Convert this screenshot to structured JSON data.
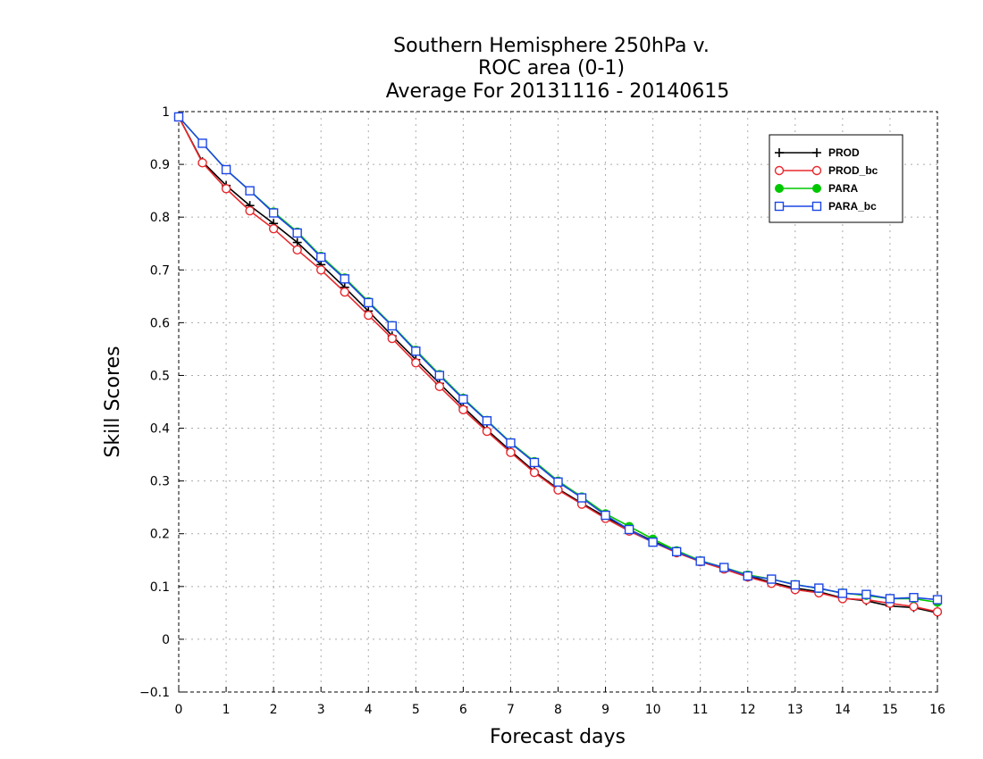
{
  "chart_data": {
    "type": "line",
    "title": [
      "Southern Hemisphere 250hPa v.",
      "ROC area (0-1)",
      "Average For 20131116 - 20140615"
    ],
    "xlabel": "Forecast days",
    "ylabel": "Skill Scores",
    "xlim": [
      0,
      16
    ],
    "ylim": [
      -0.1,
      1
    ],
    "xticks": [
      0,
      1,
      2,
      3,
      4,
      5,
      6,
      7,
      8,
      9,
      10,
      11,
      12,
      13,
      14,
      15,
      16
    ],
    "yticks": [
      -0.1,
      0,
      0.1,
      0.2,
      0.3,
      0.4,
      0.5,
      0.6,
      0.7,
      0.8,
      0.9,
      1
    ],
    "ytick_labels": [
      "−0.1",
      "0",
      "0.1",
      "0.2",
      "0.3",
      "0.4",
      "0.5",
      "0.6",
      "0.7",
      "0.8",
      "0.9",
      "1"
    ],
    "grid": true,
    "legend_position": "top-right",
    "x": [
      0,
      0.5,
      1,
      1.5,
      2,
      2.5,
      3,
      3.5,
      4,
      4.5,
      5,
      5.5,
      6,
      6.5,
      7,
      7.5,
      8,
      8.5,
      9,
      9.5,
      10,
      10.5,
      11,
      11.5,
      12,
      12.5,
      13,
      13.5,
      14,
      14.5,
      15,
      15.5,
      16
    ],
    "series": [
      {
        "name": "PROD",
        "color": "#000000",
        "marker": "plus",
        "values": [
          0.99,
          0.905,
          0.86,
          0.822,
          0.788,
          0.752,
          0.71,
          0.667,
          0.622,
          0.575,
          0.53,
          0.485,
          0.44,
          0.397,
          0.357,
          0.318,
          0.285,
          0.258,
          0.232,
          0.208,
          0.186,
          0.166,
          0.148,
          0.135,
          0.12,
          0.108,
          0.097,
          0.09,
          0.078,
          0.073,
          0.063,
          0.06,
          0.05
        ]
      },
      {
        "name": "PROD_bc",
        "color": "#e8282d",
        "marker": "circle-open",
        "values": [
          0.99,
          0.903,
          0.854,
          0.812,
          0.778,
          0.738,
          0.7,
          0.658,
          0.614,
          0.57,
          0.524,
          0.479,
          0.435,
          0.394,
          0.354,
          0.316,
          0.283,
          0.256,
          0.229,
          0.205,
          0.184,
          0.164,
          0.147,
          0.133,
          0.118,
          0.106,
          0.094,
          0.088,
          0.077,
          0.075,
          0.068,
          0.062,
          0.052
        ]
      },
      {
        "name": "PARA",
        "color": "#00c800",
        "marker": "circle-filled",
        "values": [
          0.99,
          0.94,
          0.89,
          0.85,
          0.81,
          0.772,
          0.726,
          0.685,
          0.64,
          0.595,
          0.548,
          0.502,
          0.457,
          0.415,
          0.373,
          0.337,
          0.3,
          0.27,
          0.238,
          0.214,
          0.19,
          0.168,
          0.149,
          0.136,
          0.122,
          0.114,
          0.104,
          0.096,
          0.088,
          0.083,
          0.077,
          0.077,
          0.07
        ]
      },
      {
        "name": "PARA_bc",
        "color": "#1c46e6",
        "marker": "square-open",
        "values": [
          0.99,
          0.94,
          0.89,
          0.85,
          0.808,
          0.77,
          0.724,
          0.683,
          0.638,
          0.594,
          0.546,
          0.5,
          0.455,
          0.414,
          0.372,
          0.335,
          0.298,
          0.268,
          0.235,
          0.208,
          0.184,
          0.166,
          0.148,
          0.136,
          0.12,
          0.114,
          0.103,
          0.097,
          0.087,
          0.085,
          0.077,
          0.079,
          0.075
        ]
      }
    ]
  }
}
